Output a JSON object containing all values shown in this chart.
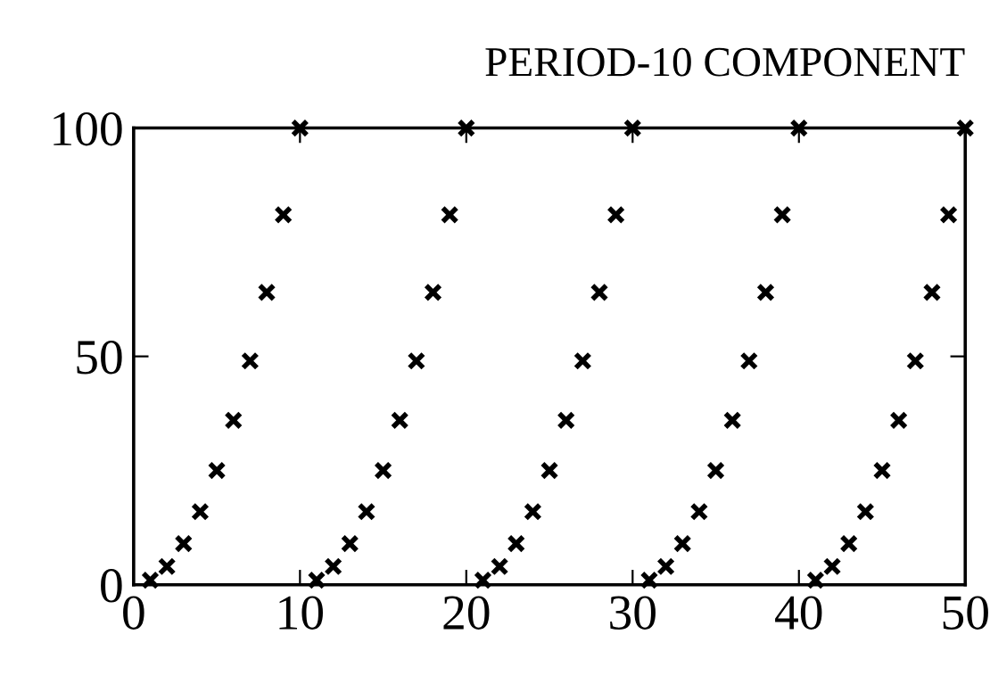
{
  "chart_data": {
    "type": "scatter",
    "title": "PERIOD-10 COMPONENT",
    "x": [
      1,
      2,
      3,
      4,
      5,
      6,
      7,
      8,
      9,
      10,
      11,
      12,
      13,
      14,
      15,
      16,
      17,
      18,
      19,
      20,
      21,
      22,
      23,
      24,
      25,
      26,
      27,
      28,
      29,
      30,
      31,
      32,
      33,
      34,
      35,
      36,
      37,
      38,
      39,
      40,
      41,
      42,
      43,
      44,
      45,
      46,
      47,
      48,
      49,
      50
    ],
    "series": [
      {
        "color": "#000000",
        "values": [
          1,
          4,
          9,
          16,
          25,
          36,
          49,
          64,
          81,
          100,
          1,
          4,
          9,
          16,
          25,
          36,
          49,
          64,
          81,
          100,
          1,
          4,
          9,
          16,
          25,
          36,
          49,
          64,
          81,
          100,
          1,
          4,
          9,
          16,
          25,
          36,
          49,
          64,
          81,
          100,
          1,
          4,
          9,
          16,
          25,
          36,
          49,
          64,
          81,
          100
        ]
      }
    ],
    "marker": "cross",
    "xlim": [
      0,
      50
    ],
    "ylim": [
      0,
      100
    ],
    "xticks": [
      0,
      10,
      20,
      30,
      40,
      50
    ],
    "yticks": [
      0,
      50,
      100
    ],
    "grid": false
  }
}
